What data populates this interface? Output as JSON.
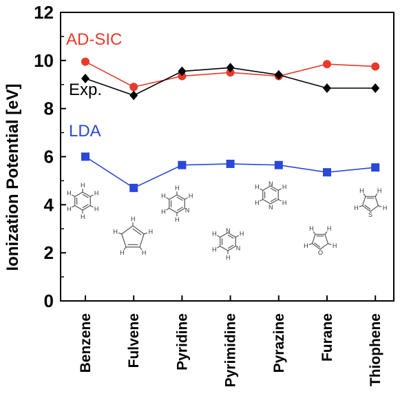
{
  "chart_data": {
    "type": "line",
    "categories": [
      "Benzene",
      "Fulvene",
      "Pyridine",
      "Pyrimidine",
      "Pyrazine",
      "Furane",
      "Thiophene"
    ],
    "ylabel": "Ionization Potential [eV]",
    "xlabel": "",
    "ylim": [
      0,
      12
    ],
    "yticks": [
      0,
      2,
      4,
      6,
      8,
      10,
      12
    ],
    "grid": false,
    "series": [
      {
        "name": "AD-SIC",
        "color": "#e8392b",
        "marker": "circle",
        "values": [
          9.95,
          8.9,
          9.35,
          9.5,
          9.35,
          9.85,
          9.75
        ]
      },
      {
        "name": "Exp.",
        "color": "#000000",
        "marker": "diamond",
        "values": [
          9.25,
          8.55,
          9.55,
          9.7,
          9.4,
          8.85,
          8.85
        ]
      },
      {
        "name": "LDA",
        "color": "#2b47d8",
        "marker": "square",
        "values": [
          6.0,
          4.7,
          5.65,
          5.7,
          5.65,
          5.35,
          5.55
        ]
      }
    ]
  },
  "molecule_labels": {
    "h": "H",
    "n": "N",
    "o": "O",
    "s": "S"
  }
}
